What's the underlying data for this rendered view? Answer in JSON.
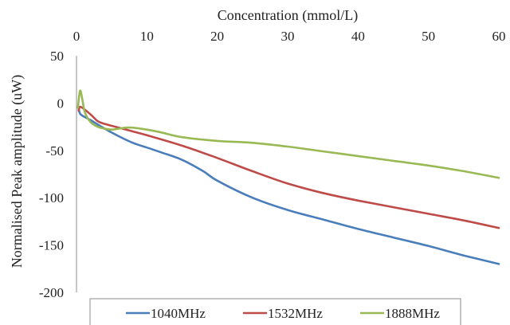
{
  "chart_data": {
    "type": "line",
    "xlabel": "Concentration (mmol/L)",
    "ylabel": "Normalised Peak amplitude (uW)",
    "xlim": [
      0,
      60
    ],
    "ylim": [
      -200,
      50
    ],
    "x_ticks": [
      0,
      10,
      20,
      30,
      40,
      50,
      60
    ],
    "y_ticks": [
      50,
      0,
      -50,
      -100,
      -150,
      -200
    ],
    "x_axis_position": "top",
    "grid": false,
    "legend_position": "bottom",
    "series": [
      {
        "name": "1040MHz",
        "color": "#4a7ebb",
        "x": [
          0.3,
          0.6,
          2,
          4,
          6,
          8,
          10,
          12,
          15,
          18,
          20,
          25,
          30,
          35,
          40,
          45,
          50,
          55,
          60
        ],
        "y": [
          -5,
          -12,
          -18,
          -27,
          -35,
          -42,
          -47,
          -52,
          -60,
          -72,
          -82,
          -100,
          -113,
          -123,
          -133,
          -142,
          -151,
          -161,
          -170
        ]
      },
      {
        "name": "1532MHz",
        "color": "#be4b48",
        "x": [
          0.3,
          0.6,
          2,
          3,
          4,
          6,
          8,
          10,
          15,
          20,
          25,
          30,
          35,
          40,
          45,
          50,
          55,
          60
        ],
        "y": [
          -8,
          -4,
          -12,
          -19,
          -22,
          -26,
          -30,
          -34,
          -45,
          -58,
          -72,
          -85,
          -95,
          -103,
          -110,
          -117,
          -124,
          -132
        ]
      },
      {
        "name": "1888MHz",
        "color": "#98b954",
        "x": [
          0.2,
          0.5,
          0.8,
          1.2,
          2,
          3,
          4,
          5,
          6,
          7,
          8,
          10,
          12,
          15,
          20,
          25,
          30,
          35,
          40,
          45,
          50,
          55,
          60
        ],
        "y": [
          -5,
          13,
          5,
          -10,
          -20,
          -25,
          -27,
          -28,
          -27,
          -26,
          -26,
          -28,
          -31,
          -36,
          -40,
          -42,
          -46,
          -51,
          -56,
          -61,
          -66,
          -72,
          -79
        ]
      }
    ]
  }
}
